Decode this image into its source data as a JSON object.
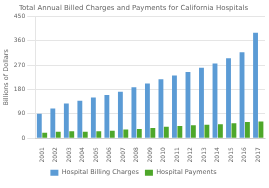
{
  "chart_data": {
    "type": "bar",
    "title": "Total Annual Billed Charges and Payments for California Hospitals",
    "ylabel": "Billions of Dollars",
    "categories": [
      "2001",
      "2002",
      "2003",
      "2004",
      "2005",
      "2006",
      "2007",
      "2008",
      "2009",
      "2010",
      "2011",
      "2012",
      "2013",
      "2014",
      "2015",
      "2016",
      "2017"
    ],
    "series": [
      {
        "name": "Hospital Billing Charges",
        "color": "#5B9BD5",
        "values": [
          90,
          110,
          128,
          138,
          150,
          160,
          172,
          188,
          202,
          218,
          232,
          245,
          260,
          276,
          295,
          318,
          390
        ]
      },
      {
        "name": "Hospital Payments",
        "color": "#4EA72A",
        "values": [
          20,
          24,
          26,
          24,
          26,
          28,
          32,
          34,
          38,
          42,
          45,
          48,
          50,
          52,
          55,
          60,
          62
        ]
      }
    ],
    "ylim": [
      0,
      450
    ],
    "yticks": [
      0,
      90,
      180,
      270,
      360,
      450
    ],
    "grid": true,
    "legend": "bottom"
  }
}
